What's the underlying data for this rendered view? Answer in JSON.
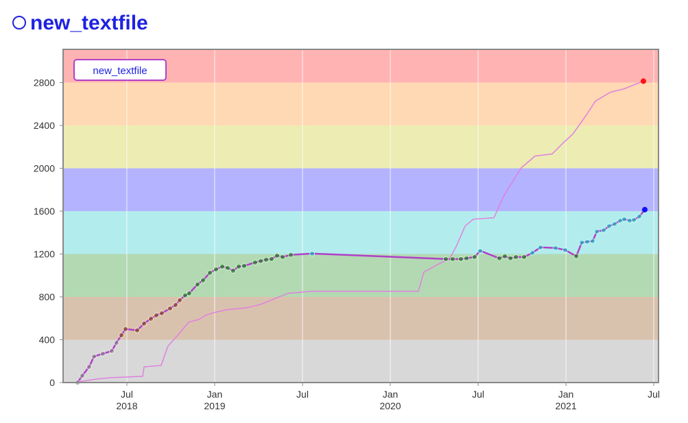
{
  "chart_data": {
    "type": "line",
    "title": "new_textfile",
    "title_color": "#1e22e0",
    "xlim": [
      2018.137,
      2021.527
    ],
    "ylim": [
      0,
      3110
    ],
    "xticks": [
      {
        "value": 2018.5,
        "label": "Jul\n2018"
      },
      {
        "value": 2019.0,
        "label": "Jan\n2019"
      },
      {
        "value": 2019.5,
        "label": "Jul"
      },
      {
        "value": 2020.0,
        "label": "Jan\n2020"
      },
      {
        "value": 2020.5,
        "label": "Jul"
      },
      {
        "value": 2021.0,
        "label": "Jan\n2021"
      },
      {
        "value": 2021.5,
        "label": "Jul"
      }
    ],
    "yticks": [
      0,
      400,
      800,
      1200,
      1600,
      2000,
      2400,
      2800
    ],
    "bands": [
      {
        "from": 0,
        "to": 400,
        "color": "#d8d8d8",
        "point_color": "#808080"
      },
      {
        "from": 400,
        "to": 800,
        "color": "#d9c2ad",
        "point_color": "#804000"
      },
      {
        "from": 800,
        "to": 1200,
        "color": "#b3d9b3",
        "point_color": "#008000"
      },
      {
        "from": 1200,
        "to": 1600,
        "color": "#b3ecec",
        "point_color": "#00c0c0"
      },
      {
        "from": 1600,
        "to": 2000,
        "color": "#b3b3ff",
        "point_color": "#0000ff"
      },
      {
        "from": 2000,
        "to": 2400,
        "color": "#ececb3",
        "point_color": "#c0c000"
      },
      {
        "from": 2400,
        "to": 2800,
        "color": "#ffd9b3",
        "point_color": "#ff8000"
      },
      {
        "from": 2800,
        "to": 3110,
        "color": "#ffb3b3",
        "point_color": "#ff0000"
      }
    ],
    "series": [
      {
        "name": "new_textfile",
        "color": "#b040c8",
        "markers": "all",
        "x": [
          2018.219,
          2018.246,
          2018.285,
          2018.313,
          2018.363,
          2018.414,
          2018.441,
          2018.469,
          2018.492,
          2018.559,
          2018.598,
          2018.637,
          2018.668,
          2018.699,
          2018.746,
          2018.777,
          2018.801,
          2018.832,
          2018.855,
          2018.902,
          2018.934,
          2018.973,
          2019.008,
          2019.043,
          2019.074,
          2019.105,
          2019.137,
          2019.168,
          2019.23,
          2019.262,
          2019.293,
          2019.324,
          2019.355,
          2019.387,
          2019.434,
          2019.555,
          2020.316,
          2020.355,
          2020.402,
          2020.434,
          2020.48,
          2020.512,
          2020.621,
          2020.652,
          2020.684,
          2020.715,
          2020.762,
          2020.809,
          2020.855,
          2020.941,
          2020.996,
          2021.059,
          2021.09,
          2021.121,
          2021.152,
          2021.176,
          2021.215,
          2021.246,
          2021.277,
          2021.309,
          2021.332,
          2021.363,
          2021.387,
          2021.418,
          2021.449
        ],
        "values": [
          0,
          64,
          147,
          243,
          269,
          295,
          372,
          442,
          500,
          487,
          551,
          596,
          628,
          647,
          692,
          724,
          769,
          814,
          833,
          916,
          955,
          1025,
          1057,
          1083,
          1070,
          1044,
          1083,
          1089,
          1121,
          1134,
          1147,
          1153,
          1185,
          1172,
          1192,
          1204,
          1153,
          1153,
          1153,
          1160,
          1172,
          1230,
          1160,
          1179,
          1160,
          1172,
          1172,
          1211,
          1262,
          1256,
          1237,
          1179,
          1307,
          1314,
          1320,
          1410,
          1422,
          1461,
          1480,
          1512,
          1525,
          1512,
          1518,
          1550,
          1614
        ]
      },
      {
        "color": "#e080e0",
        "markers": "last",
        "x": [
          2018.219,
          2018.324,
          2018.402,
          2018.59,
          2018.598,
          2018.695,
          2018.734,
          2018.793,
          2018.852,
          2018.91,
          2018.949,
          2018.996,
          2019.066,
          2019.184,
          2019.262,
          2019.34,
          2019.418,
          2019.555,
          2020.16,
          2020.191,
          2020.277,
          2020.336,
          2020.375,
          2020.426,
          2020.473,
          2020.59,
          2020.648,
          2020.746,
          2020.824,
          2020.922,
          2020.98,
          2021.039,
          2021.117,
          2021.168,
          2021.254,
          2021.332,
          2021.391,
          2021.441
        ],
        "values": [
          5,
          32,
          45,
          58,
          147,
          160,
          340,
          448,
          564,
          589,
          628,
          653,
          679,
          698,
          730,
          782,
          833,
          852,
          852,
          1031,
          1108,
          1153,
          1269,
          1461,
          1525,
          1538,
          1749,
          2005,
          2114,
          2134,
          2230,
          2319,
          2499,
          2627,
          2710,
          2742,
          2781,
          2813
        ]
      }
    ]
  }
}
